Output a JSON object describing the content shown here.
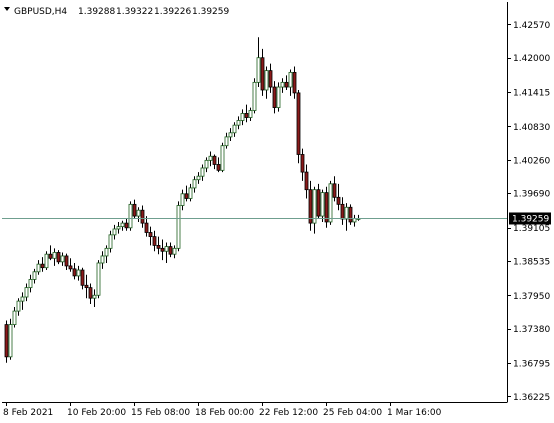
{
  "header": {
    "symbol": "GBPUSD,H4",
    "open": "1.39288",
    "high": "1.39322",
    "low": "1.39226",
    "close": "1.39259"
  },
  "colors": {
    "background": "#ffffff",
    "axis": "#000000",
    "bull_body": "#ffffff",
    "bear_body": "#8b1a1a",
    "bull_outline": "#1f5f1f",
    "current_price_line": "#6f9f8f",
    "price_tag_bg": "#000000",
    "price_tag_text": "#ffffff"
  },
  "chart_data": {
    "type": "candlestick",
    "title": "GBPUSD,H4",
    "current_price": 1.39259,
    "current_price_label": "1.39259",
    "ylim": [
      1.3613,
      1.4295
    ],
    "y_ticks": [
      {
        "value": 1.4257,
        "label": "1.42570"
      },
      {
        "value": 1.42,
        "label": "1.42000"
      },
      {
        "value": 1.41415,
        "label": "1.41415"
      },
      {
        "value": 1.4083,
        "label": "1.40830"
      },
      {
        "value": 1.4026,
        "label": "1.40260"
      },
      {
        "value": 1.3969,
        "label": "1.39690"
      },
      {
        "value": 1.39105,
        "label": "1.39105"
      },
      {
        "value": 1.38535,
        "label": "1.38535"
      },
      {
        "value": 1.3795,
        "label": "1.37950"
      },
      {
        "value": 1.3738,
        "label": "1.37380"
      },
      {
        "value": 1.36795,
        "label": "1.36795"
      },
      {
        "value": 1.36225,
        "label": "1.36225"
      }
    ],
    "x_ticks": [
      {
        "index": 0,
        "label": "8 Feb 2021"
      },
      {
        "index": 16,
        "label": "10 Feb 20:00"
      },
      {
        "index": 32,
        "label": "15 Feb 08:00"
      },
      {
        "index": 48,
        "label": "18 Feb 00:00"
      },
      {
        "index": 64,
        "label": "22 Feb 12:00"
      },
      {
        "index": 80,
        "label": "25 Feb 04:00"
      },
      {
        "index": 96,
        "label": "1 Mar 16:00"
      }
    ],
    "candles": [
      [
        1.3745,
        1.3752,
        1.368,
        1.369
      ],
      [
        1.369,
        1.3755,
        1.3685,
        1.3745
      ],
      [
        1.3745,
        1.3775,
        1.374,
        1.3768
      ],
      [
        1.3768,
        1.379,
        1.376,
        1.3785
      ],
      [
        1.3785,
        1.38,
        1.377,
        1.3792
      ],
      [
        1.3792,
        1.3815,
        1.3785,
        1.3808
      ],
      [
        1.3808,
        1.383,
        1.38,
        1.3822
      ],
      [
        1.3822,
        1.384,
        1.3815,
        1.3835
      ],
      [
        1.3835,
        1.3855,
        1.383,
        1.3848
      ],
      [
        1.3848,
        1.386,
        1.3835,
        1.3842
      ],
      [
        1.3842,
        1.387,
        1.3838,
        1.3865
      ],
      [
        1.3865,
        1.388,
        1.3855,
        1.3858
      ],
      [
        1.3858,
        1.3875,
        1.3845,
        1.3868
      ],
      [
        1.3868,
        1.3872,
        1.3848,
        1.3852
      ],
      [
        1.3852,
        1.3868,
        1.3845,
        1.3862
      ],
      [
        1.3862,
        1.3866,
        1.3838,
        1.3845
      ],
      [
        1.3845,
        1.3858,
        1.3835,
        1.384
      ],
      [
        1.384,
        1.385,
        1.3822,
        1.3828
      ],
      [
        1.3828,
        1.3845,
        1.382,
        1.3838
      ],
      [
        1.3838,
        1.3842,
        1.3805,
        1.3812
      ],
      [
        1.3812,
        1.383,
        1.379,
        1.3808
      ],
      [
        1.3808,
        1.3815,
        1.378,
        1.379
      ],
      [
        1.379,
        1.3805,
        1.3775,
        1.3795
      ],
      [
        1.3795,
        1.3855,
        1.379,
        1.385
      ],
      [
        1.385,
        1.387,
        1.384,
        1.3862
      ],
      [
        1.3862,
        1.388,
        1.385,
        1.3875
      ],
      [
        1.3875,
        1.3905,
        1.3868,
        1.3898
      ],
      [
        1.3898,
        1.3915,
        1.389,
        1.3908
      ],
      [
        1.3908,
        1.392,
        1.39,
        1.3912
      ],
      [
        1.3912,
        1.3922,
        1.3905,
        1.3918
      ],
      [
        1.3918,
        1.3925,
        1.3905,
        1.391
      ],
      [
        1.391,
        1.3955,
        1.3905,
        1.395
      ],
      [
        1.395,
        1.3958,
        1.3925,
        1.393
      ],
      [
        1.393,
        1.3945,
        1.392,
        1.394
      ],
      [
        1.394,
        1.3948,
        1.391,
        1.3918
      ],
      [
        1.3918,
        1.393,
        1.3895,
        1.3902
      ],
      [
        1.3902,
        1.3912,
        1.388,
        1.3895
      ],
      [
        1.3895,
        1.3905,
        1.387,
        1.388
      ],
      [
        1.388,
        1.3895,
        1.3865,
        1.3875
      ],
      [
        1.3875,
        1.389,
        1.3855,
        1.387
      ],
      [
        1.387,
        1.3885,
        1.385,
        1.3878
      ],
      [
        1.3878,
        1.3885,
        1.386,
        1.3865
      ],
      [
        1.3865,
        1.388,
        1.3858,
        1.3875
      ],
      [
        1.3875,
        1.3955,
        1.387,
        1.3948
      ],
      [
        1.3948,
        1.3975,
        1.394,
        1.3968
      ],
      [
        1.3968,
        1.3982,
        1.3955,
        1.396
      ],
      [
        1.396,
        1.3985,
        1.3955,
        1.3978
      ],
      [
        1.3978,
        1.3998,
        1.397,
        1.3992
      ],
      [
        1.3992,
        1.4005,
        1.3985,
        1.3998
      ],
      [
        1.3998,
        1.4018,
        1.399,
        1.4012
      ],
      [
        1.4012,
        1.403,
        1.4005,
        1.4025
      ],
      [
        1.4025,
        1.404,
        1.4015,
        1.4032
      ],
      [
        1.4032,
        1.4035,
        1.401,
        1.4018
      ],
      [
        1.4018,
        1.403,
        1.4005,
        1.4008
      ],
      [
        1.4008,
        1.4055,
        1.4005,
        1.405
      ],
      [
        1.405,
        1.4072,
        1.4045,
        1.4065
      ],
      [
        1.4065,
        1.408,
        1.4058,
        1.4072
      ],
      [
        1.4072,
        1.409,
        1.4065,
        1.4085
      ],
      [
        1.4085,
        1.41,
        1.4078,
        1.4093
      ],
      [
        1.4093,
        1.4112,
        1.4085,
        1.4105
      ],
      [
        1.4105,
        1.412,
        1.409,
        1.4098
      ],
      [
        1.4098,
        1.4115,
        1.4092,
        1.411
      ],
      [
        1.411,
        1.4165,
        1.4105,
        1.4158
      ],
      [
        1.4158,
        1.4235,
        1.415,
        1.42
      ],
      [
        1.42,
        1.4215,
        1.4135,
        1.4145
      ],
      [
        1.4145,
        1.4185,
        1.413,
        1.4178
      ],
      [
        1.4178,
        1.419,
        1.414,
        1.415
      ],
      [
        1.415,
        1.416,
        1.4105,
        1.4115
      ],
      [
        1.4115,
        1.4158,
        1.4108,
        1.415
      ],
      [
        1.415,
        1.4165,
        1.414,
        1.4158
      ],
      [
        1.4158,
        1.417,
        1.4145,
        1.415
      ],
      [
        1.415,
        1.418,
        1.4135,
        1.4175
      ],
      [
        1.4175,
        1.4185,
        1.413,
        1.414
      ],
      [
        1.414,
        1.4145,
        1.402,
        1.4035
      ],
      [
        1.4035,
        1.4045,
        1.399,
        1.4005
      ],
      [
        1.4005,
        1.4018,
        1.396,
        1.3975
      ],
      [
        1.3975,
        1.399,
        1.3905,
        1.3918
      ],
      [
        1.3918,
        1.398,
        1.39,
        1.3975
      ],
      [
        1.3975,
        1.3985,
        1.3925,
        1.393
      ],
      [
        1.393,
        1.3975,
        1.392,
        1.397
      ],
      [
        1.397,
        1.398,
        1.391,
        1.392
      ],
      [
        1.392,
        1.399,
        1.3915,
        1.3985
      ],
      [
        1.3985,
        1.3998,
        1.3955,
        1.3962
      ],
      [
        1.3962,
        1.3985,
        1.394,
        1.395
      ],
      [
        1.395,
        1.3962,
        1.3915,
        1.3925
      ],
      [
        1.3925,
        1.3952,
        1.3905,
        1.3945
      ],
      [
        1.3945,
        1.395,
        1.3915,
        1.392
      ],
      [
        1.392,
        1.3932,
        1.3912,
        1.3926
      ],
      [
        1.3926,
        1.3932,
        1.3922,
        1.3926
      ]
    ]
  }
}
